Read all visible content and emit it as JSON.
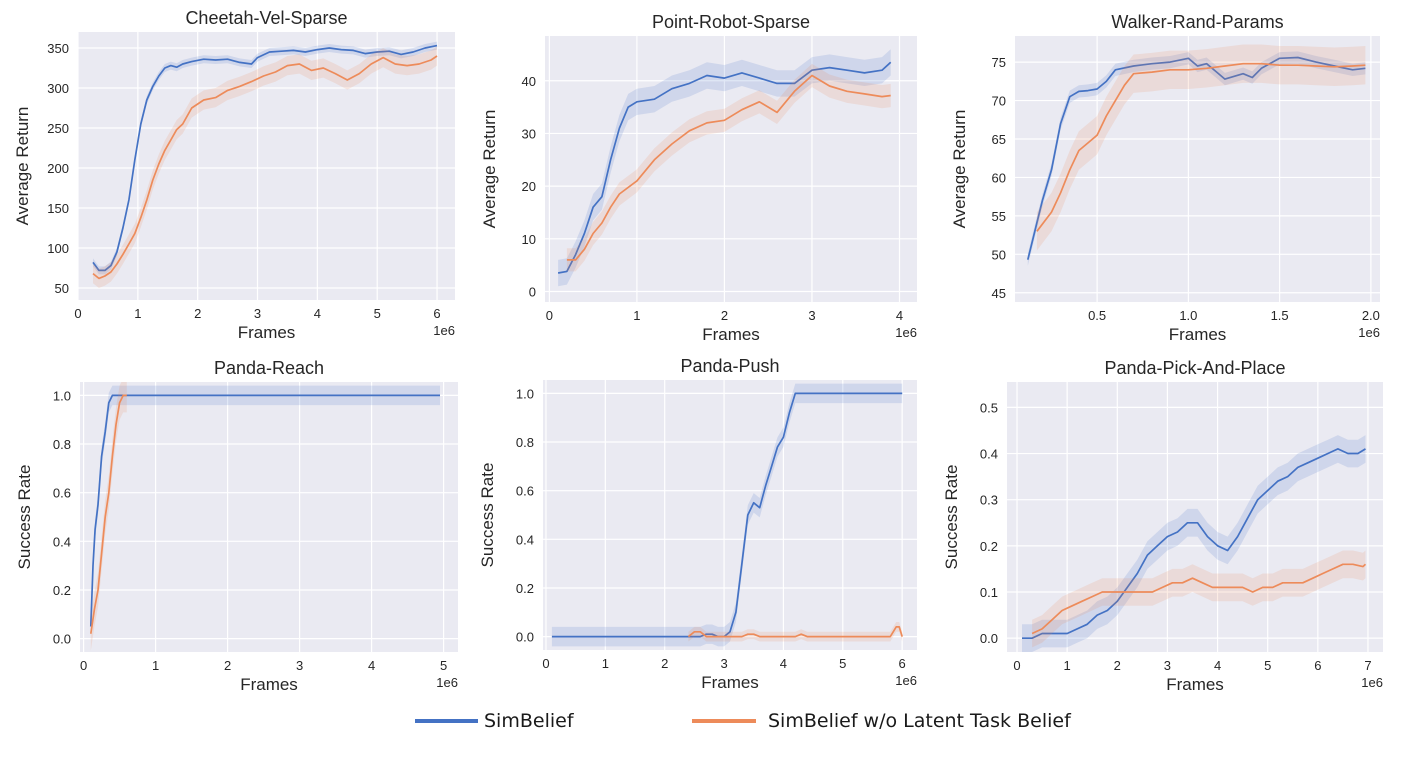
{
  "legend": {
    "entries": [
      {
        "label": "SimBelief",
        "color": "#4472c4"
      },
      {
        "label": "SimBelief w/o Latent Task Belief",
        "color": "#ed8b5a"
      }
    ]
  },
  "style": {
    "plot_bg": "#eaeaf2",
    "grid": "#ffffff",
    "blue": "#4472c4",
    "orange": "#ed8b5a"
  },
  "chart_data": [
    {
      "type": "line",
      "title": "Cheetah-Vel-Sparse",
      "xlabel": "Frames",
      "ylabel": "Average Return",
      "x_multiplier": "1e6",
      "xlim": [
        0,
        6.3
      ],
      "ylim": [
        35,
        370
      ],
      "xticks": [
        0,
        1,
        2,
        3,
        4,
        5,
        6
      ],
      "xtick_labels": [
        "0",
        "1",
        "2",
        "3",
        "4",
        "5",
        "6"
      ],
      "yticks": [
        50,
        100,
        150,
        200,
        250,
        300,
        350
      ],
      "ytick_labels": [
        "50",
        "100",
        "150",
        "200",
        "250",
        "300",
        "350"
      ],
      "series": [
        {
          "name": "SimBelief",
          "color": "#4472c4",
          "x": [
            0.25,
            0.35,
            0.45,
            0.55,
            0.65,
            0.75,
            0.85,
            0.95,
            1.05,
            1.15,
            1.25,
            1.35,
            1.45,
            1.55,
            1.65,
            1.75,
            1.9,
            2.1,
            2.3,
            2.5,
            2.7,
            2.9,
            3.0,
            3.2,
            3.4,
            3.6,
            3.8,
            4.0,
            4.2,
            4.4,
            4.6,
            4.8,
            5.0,
            5.2,
            5.4,
            5.6,
            5.8,
            6.0
          ],
          "y": [
            82,
            72,
            72,
            78,
            95,
            125,
            160,
            210,
            255,
            285,
            302,
            315,
            325,
            328,
            326,
            330,
            333,
            336,
            335,
            336,
            332,
            330,
            338,
            345,
            346,
            347,
            345,
            348,
            350,
            348,
            347,
            343,
            345,
            346,
            342,
            345,
            350,
            353
          ],
          "band": 5
        },
        {
          "name": "SimBelief w/o Latent Task Belief",
          "color": "#ed8b5a",
          "x": [
            0.25,
            0.35,
            0.45,
            0.55,
            0.65,
            0.75,
            0.85,
            0.95,
            1.05,
            1.15,
            1.25,
            1.35,
            1.45,
            1.55,
            1.65,
            1.75,
            1.9,
            2.1,
            2.3,
            2.5,
            2.7,
            2.9,
            3.1,
            3.3,
            3.5,
            3.7,
            3.9,
            4.1,
            4.3,
            4.5,
            4.7,
            4.9,
            5.1,
            5.3,
            5.5,
            5.7,
            5.9,
            6.0
          ],
          "y": [
            68,
            62,
            65,
            70,
            80,
            92,
            105,
            118,
            138,
            160,
            185,
            205,
            222,
            235,
            248,
            255,
            275,
            285,
            288,
            297,
            302,
            308,
            315,
            320,
            328,
            330,
            322,
            325,
            318,
            310,
            318,
            330,
            338,
            330,
            328,
            330,
            335,
            340
          ],
          "band": 12
        }
      ]
    },
    {
      "type": "line",
      "title": "Point-Robot-Sparse",
      "xlabel": "Frames",
      "ylabel": "Average Return",
      "x_multiplier": "1e6",
      "xlim": [
        -0.05,
        4.2
      ],
      "ylim": [
        -2,
        48.5
      ],
      "xticks": [
        0,
        1,
        2,
        3,
        4
      ],
      "xtick_labels": [
        "0",
        "1",
        "2",
        "3",
        "4"
      ],
      "yticks": [
        0,
        10,
        20,
        30,
        40
      ],
      "ytick_labels": [
        "0",
        "10",
        "20",
        "30",
        "40"
      ],
      "series": [
        {
          "name": "SimBelief",
          "color": "#4472c4",
          "x": [
            0.1,
            0.2,
            0.3,
            0.4,
            0.5,
            0.6,
            0.7,
            0.8,
            0.9,
            1.0,
            1.2,
            1.4,
            1.6,
            1.8,
            2.0,
            2.2,
            2.4,
            2.6,
            2.8,
            3.0,
            3.2,
            3.4,
            3.6,
            3.8,
            3.9
          ],
          "y": [
            3.5,
            3.8,
            7,
            11,
            16,
            18,
            25,
            31,
            35,
            36,
            36.5,
            38.5,
            39.5,
            41,
            40.5,
            41.5,
            40.5,
            39.5,
            39.5,
            42,
            42.5,
            42,
            41.5,
            42,
            43.5
          ],
          "band": 2.5
        },
        {
          "name": "SimBelief w/o Latent Task Belief",
          "color": "#ed8b5a",
          "x": [
            0.2,
            0.3,
            0.4,
            0.5,
            0.6,
            0.7,
            0.8,
            1.0,
            1.2,
            1.4,
            1.6,
            1.8,
            2.0,
            2.2,
            2.4,
            2.6,
            2.8,
            3.0,
            3.2,
            3.4,
            3.6,
            3.8,
            3.9
          ],
          "y": [
            6,
            6,
            8,
            11,
            13,
            16,
            18.5,
            21,
            25,
            28,
            30.5,
            32,
            32.5,
            34.5,
            36,
            34,
            38,
            41,
            39,
            38,
            37.5,
            37,
            37.2
          ],
          "band": 2.2
        }
      ]
    },
    {
      "type": "line",
      "title": "Walker-Rand-Params",
      "xlabel": "Frames",
      "ylabel": "Average Return",
      "x_multiplier": "1e6",
      "xlim": [
        0.05,
        2.05
      ],
      "ylim": [
        43.8,
        78.4
      ],
      "xticks": [
        0.5,
        1.0,
        1.5,
        2.0
      ],
      "xtick_labels": [
        "0.5",
        "1.0",
        "1.5",
        "2.0"
      ],
      "yticks": [
        45,
        50,
        55,
        60,
        65,
        70,
        75
      ],
      "ytick_labels": [
        "45",
        "50",
        "55",
        "60",
        "65",
        "70",
        "75"
      ],
      "series": [
        {
          "name": "SimBelief",
          "color": "#4472c4",
          "x": [
            0.12,
            0.2,
            0.25,
            0.3,
            0.35,
            0.4,
            0.45,
            0.5,
            0.55,
            0.6,
            0.7,
            0.8,
            0.9,
            1.0,
            1.05,
            1.1,
            1.15,
            1.2,
            1.3,
            1.35,
            1.4,
            1.5,
            1.6,
            1.7,
            1.8,
            1.9,
            1.97
          ],
          "y": [
            49.3,
            57,
            61,
            67,
            70.5,
            71.2,
            71.3,
            71.5,
            72.5,
            74,
            74.5,
            74.8,
            75,
            75.5,
            74.5,
            74.8,
            73.8,
            72.8,
            73.5,
            73,
            74.2,
            75.5,
            75.6,
            75,
            74.5,
            74,
            74.2
          ],
          "band": 0.8
        },
        {
          "name": "SimBelief w/o Latent Task Belief",
          "color": "#ed8b5a",
          "x": [
            0.17,
            0.25,
            0.3,
            0.35,
            0.4,
            0.45,
            0.5,
            0.55,
            0.6,
            0.65,
            0.7,
            0.8,
            0.9,
            1.0,
            1.1,
            1.2,
            1.3,
            1.4,
            1.5,
            1.6,
            1.7,
            1.8,
            1.9,
            1.97
          ],
          "y": [
            53,
            55.5,
            58,
            61,
            63.5,
            64.5,
            65.5,
            68,
            70,
            72,
            73.5,
            73.7,
            74,
            74,
            74.2,
            74.5,
            74.8,
            74.8,
            74.6,
            74.6,
            74.5,
            74.4,
            74.5,
            74.6
          ],
          "band": 2.5
        }
      ]
    },
    {
      "type": "line",
      "title": "Panda-Reach",
      "xlabel": "Frames",
      "ylabel": "Success Rate",
      "x_multiplier": "1e6",
      "xlim": [
        -0.05,
        5.2
      ],
      "ylim": [
        -0.055,
        1.055
      ],
      "xticks": [
        0,
        1,
        2,
        3,
        4,
        5
      ],
      "xtick_labels": [
        "0",
        "1",
        "2",
        "3",
        "4",
        "5"
      ],
      "yticks": [
        0,
        0.2,
        0.4,
        0.6,
        0.8,
        1.0
      ],
      "ytick_labels": [
        "0.0",
        "0.2",
        "0.4",
        "0.6",
        "0.8",
        "1.0"
      ],
      "series": [
        {
          "name": "SimBelief",
          "color": "#4472c4",
          "x": [
            0.1,
            0.13,
            0.16,
            0.2,
            0.25,
            0.3,
            0.35,
            0.4,
            0.45,
            0.5,
            1.0,
            2.0,
            3.0,
            4.0,
            4.95
          ],
          "y": [
            0.05,
            0.3,
            0.45,
            0.55,
            0.75,
            0.85,
            0.97,
            1.0,
            1.0,
            1.0,
            1.0,
            1.0,
            1.0,
            1.0,
            1.0
          ],
          "band": 0.04
        },
        {
          "name": "SimBelief w/o Latent Task Belief",
          "color": "#ed8b5a",
          "x": [
            0.1,
            0.15,
            0.2,
            0.25,
            0.3,
            0.35,
            0.4,
            0.45,
            0.5,
            0.55,
            0.6
          ],
          "y": [
            0.02,
            0.12,
            0.2,
            0.35,
            0.5,
            0.6,
            0.75,
            0.88,
            0.97,
            1.0,
            1.0
          ],
          "band": 0.07
        }
      ]
    },
    {
      "type": "line",
      "title": "Panda-Push",
      "xlabel": "Frames",
      "ylabel": "Success Rate",
      "x_multiplier": "1e6",
      "xlim": [
        -0.05,
        6.25
      ],
      "ylim": [
        -0.055,
        1.055
      ],
      "xticks": [
        0,
        1,
        2,
        3,
        4,
        5,
        6
      ],
      "xtick_labels": [
        "0",
        "1",
        "2",
        "3",
        "4",
        "5",
        "6"
      ],
      "yticks": [
        0,
        0.2,
        0.4,
        0.6,
        0.8,
        1.0
      ],
      "ytick_labels": [
        "0.0",
        "0.2",
        "0.4",
        "0.6",
        "0.8",
        "1.0"
      ],
      "series": [
        {
          "name": "SimBelief",
          "color": "#4472c4",
          "x": [
            0.1,
            1.0,
            2.0,
            2.6,
            2.7,
            2.8,
            2.9,
            3.0,
            3.1,
            3.2,
            3.3,
            3.4,
            3.5,
            3.6,
            3.7,
            3.8,
            3.9,
            4.0,
            4.1,
            4.2,
            4.3,
            5.0,
            6.0
          ],
          "y": [
            0,
            0,
            0,
            0,
            0.01,
            0.01,
            0,
            0,
            0.02,
            0.1,
            0.3,
            0.5,
            0.55,
            0.53,
            0.62,
            0.7,
            0.78,
            0.82,
            0.92,
            1.0,
            1.0,
            1.0,
            1.0
          ],
          "band": 0.04
        },
        {
          "name": "SimBelief w/o Latent Task Belief",
          "color": "#ed8b5a",
          "x": [
            2.4,
            2.5,
            2.6,
            2.7,
            2.8,
            3.3,
            3.4,
            3.5,
            3.6,
            4.2,
            4.3,
            4.4,
            5.8,
            5.9,
            5.95,
            6.0
          ],
          "y": [
            0,
            0.02,
            0.02,
            0,
            0,
            0,
            0.01,
            0.01,
            0,
            0,
            0.01,
            0,
            0,
            0.04,
            0.04,
            0
          ],
          "band": 0.02
        }
      ]
    },
    {
      "type": "line",
      "title": "Panda-Pick-And-Place",
      "xlabel": "Frames",
      "ylabel": "Success Rate",
      "x_multiplier": "1e6",
      "xlim": [
        -0.2,
        7.3
      ],
      "ylim": [
        -0.03,
        0.555
      ],
      "xticks": [
        0,
        1,
        2,
        3,
        4,
        5,
        6,
        7
      ],
      "xtick_labels": [
        "0",
        "1",
        "2",
        "3",
        "4",
        "5",
        "6",
        "7"
      ],
      "yticks": [
        0,
        0.1,
        0.2,
        0.3,
        0.4,
        0.5
      ],
      "ytick_labels": [
        "0.0",
        "0.1",
        "0.2",
        "0.3",
        "0.4",
        "0.5"
      ],
      "series": [
        {
          "name": "SimBelief",
          "color": "#4472c4",
          "x": [
            0.1,
            0.3,
            0.5,
            0.7,
            1.0,
            1.2,
            1.4,
            1.6,
            1.8,
            2.0,
            2.2,
            2.4,
            2.6,
            2.8,
            3.0,
            3.2,
            3.4,
            3.6,
            3.8,
            4.0,
            4.2,
            4.4,
            4.6,
            4.8,
            5.0,
            5.2,
            5.4,
            5.6,
            5.8,
            6.0,
            6.2,
            6.4,
            6.6,
            6.8,
            6.95
          ],
          "y": [
            0,
            0,
            0.01,
            0.01,
            0.01,
            0.02,
            0.03,
            0.05,
            0.06,
            0.08,
            0.11,
            0.14,
            0.18,
            0.2,
            0.22,
            0.23,
            0.25,
            0.25,
            0.22,
            0.2,
            0.19,
            0.22,
            0.26,
            0.3,
            0.32,
            0.34,
            0.35,
            0.37,
            0.38,
            0.39,
            0.4,
            0.41,
            0.4,
            0.4,
            0.41
          ],
          "band": 0.03
        },
        {
          "name": "SimBelief w/o Latent Task Belief",
          "color": "#ed8b5a",
          "x": [
            0.3,
            0.5,
            0.7,
            0.9,
            1.1,
            1.3,
            1.5,
            1.7,
            1.9,
            2.1,
            2.3,
            2.5,
            2.7,
            2.9,
            3.1,
            3.3,
            3.5,
            3.7,
            3.9,
            4.1,
            4.3,
            4.5,
            4.7,
            4.9,
            5.1,
            5.3,
            5.5,
            5.7,
            5.9,
            6.1,
            6.3,
            6.5,
            6.7,
            6.9,
            6.95
          ],
          "y": [
            0.01,
            0.02,
            0.04,
            0.06,
            0.07,
            0.08,
            0.09,
            0.1,
            0.1,
            0.1,
            0.1,
            0.1,
            0.1,
            0.11,
            0.12,
            0.12,
            0.13,
            0.12,
            0.11,
            0.11,
            0.11,
            0.11,
            0.1,
            0.11,
            0.11,
            0.12,
            0.12,
            0.12,
            0.13,
            0.14,
            0.15,
            0.16,
            0.16,
            0.155,
            0.16
          ],
          "band": 0.03
        }
      ]
    }
  ]
}
